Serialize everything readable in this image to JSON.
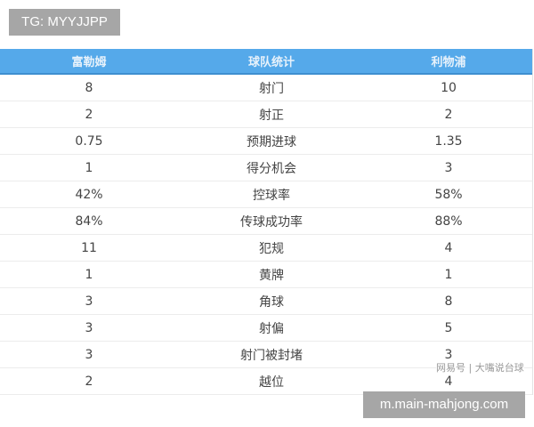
{
  "watermark_top": "TG: MYYJJPP",
  "watermark_bottom": "m.main-mahjong.com",
  "source_mark": "网易号 | 大嘴说台球",
  "header": {
    "home": "富勒姆",
    "stat": "球队统计",
    "away": "利物浦"
  },
  "rows": [
    {
      "home": "8",
      "stat": "射门",
      "away": "10"
    },
    {
      "home": "2",
      "stat": "射正",
      "away": "2"
    },
    {
      "home": "0.75",
      "stat": "预期进球",
      "away": "1.35"
    },
    {
      "home": "1",
      "stat": "得分机会",
      "away": "3"
    },
    {
      "home": "42%",
      "stat": "控球率",
      "away": "58%"
    },
    {
      "home": "84%",
      "stat": "传球成功率",
      "away": "88%"
    },
    {
      "home": "11",
      "stat": "犯规",
      "away": "4"
    },
    {
      "home": "1",
      "stat": "黄牌",
      "away": "1"
    },
    {
      "home": "3",
      "stat": "角球",
      "away": "8"
    },
    {
      "home": "3",
      "stat": "射偏",
      "away": "5"
    },
    {
      "home": "3",
      "stat": "射门被封堵",
      "away": "3"
    },
    {
      "home": "2",
      "stat": "越位",
      "away": "4"
    }
  ],
  "colors": {
    "header_bg": "#55a9ea",
    "watermark_bg": "#a6a6a6"
  }
}
